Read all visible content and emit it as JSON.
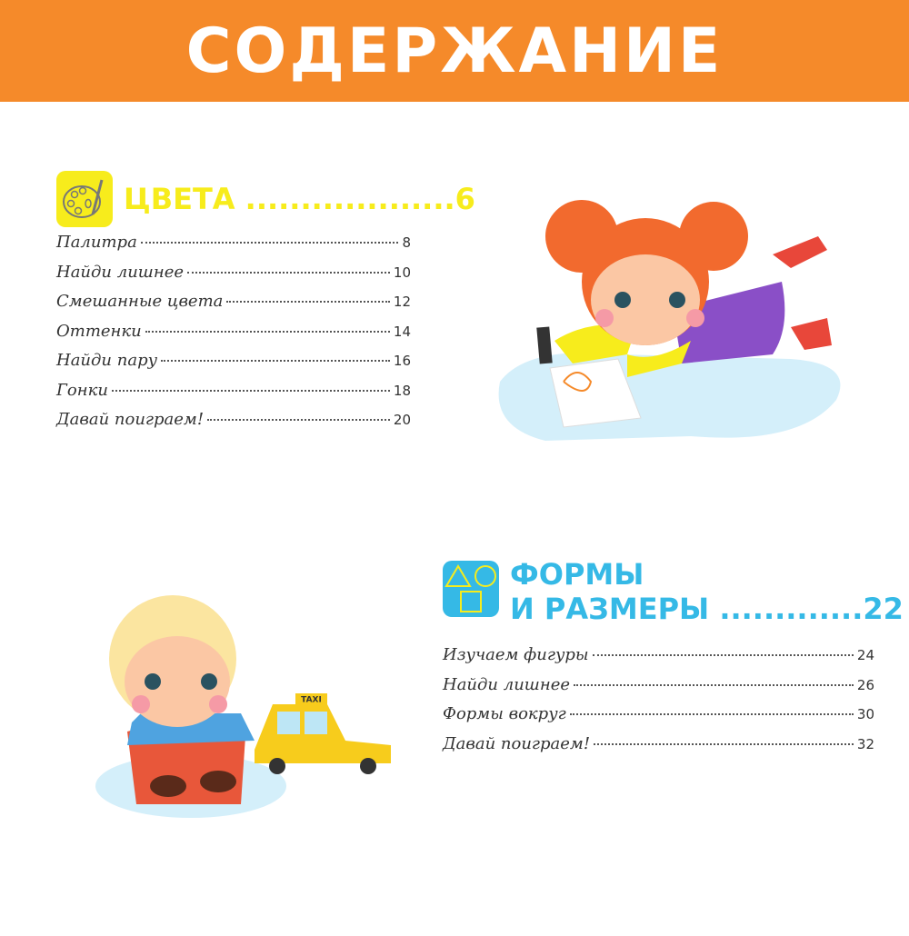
{
  "title": "СОДЕРЖАНИЕ",
  "sections": [
    {
      "title": "ЦВЕТА",
      "page": "6",
      "icon": "palette-icon",
      "color": "#f7ec1c",
      "items": [
        {
          "label": "Палитра",
          "page": "8"
        },
        {
          "label": "Найди лишнее",
          "page": "10"
        },
        {
          "label": "Смешанные цвета",
          "page": "12"
        },
        {
          "label": "Оттенки",
          "page": "14"
        },
        {
          "label": "Найди пару",
          "page": "16"
        },
        {
          "label": "Гонки",
          "page": "18"
        },
        {
          "label": "Давай поиграем!",
          "page": "20"
        }
      ]
    },
    {
      "title_line1": "ФОРМЫ",
      "title_line2": "И РАЗМЕРЫ",
      "page": "22",
      "icon": "shapes-icon",
      "color": "#35b9e6",
      "items": [
        {
          "label": "Изучаем фигуры",
          "page": "24"
        },
        {
          "label": "Найди лишнее",
          "page": "26"
        },
        {
          "label": "Формы вокруг",
          "page": "30"
        },
        {
          "label": "Давай поиграем!",
          "page": "32"
        }
      ]
    }
  ],
  "taxi_sign": "TAXI",
  "colors": {
    "banner": "#f58a2a",
    "text": "#333333"
  }
}
